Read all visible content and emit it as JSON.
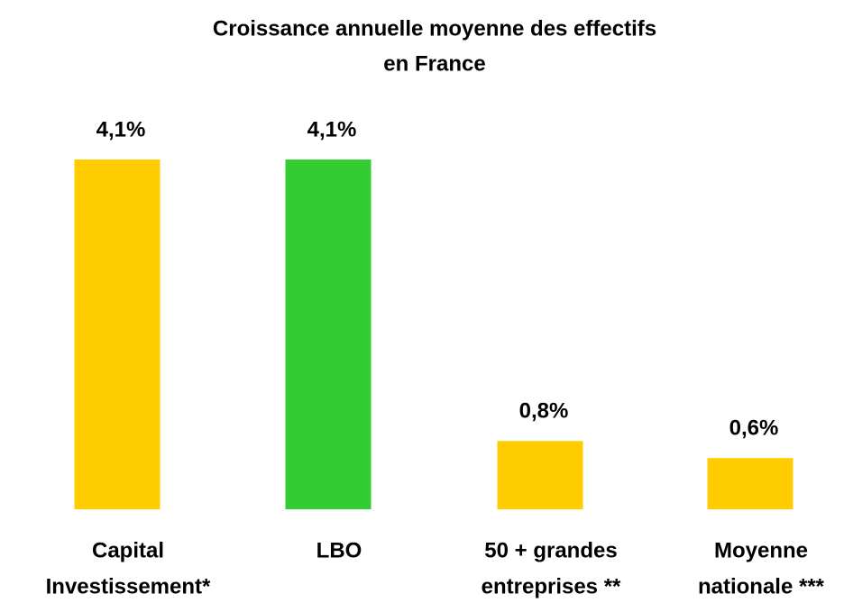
{
  "chart_data": {
    "type": "bar",
    "title": [
      "Croissance annuelle moyenne des effectifs",
      "en France"
    ],
    "categories": [
      [
        "Capital",
        "Investissement*"
      ],
      [
        "LBO"
      ],
      [
        "50 + grandes",
        "entreprises **"
      ],
      [
        "Moyenne",
        "nationale ***"
      ]
    ],
    "values": [
      4.1,
      4.1,
      0.8,
      0.6
    ],
    "value_labels": [
      "4,1%",
      "4,1%",
      "0,8%",
      "0,6%"
    ],
    "colors": [
      "#ffcc00",
      "#33cc33",
      "#ffcc00",
      "#ffcc00"
    ]
  }
}
